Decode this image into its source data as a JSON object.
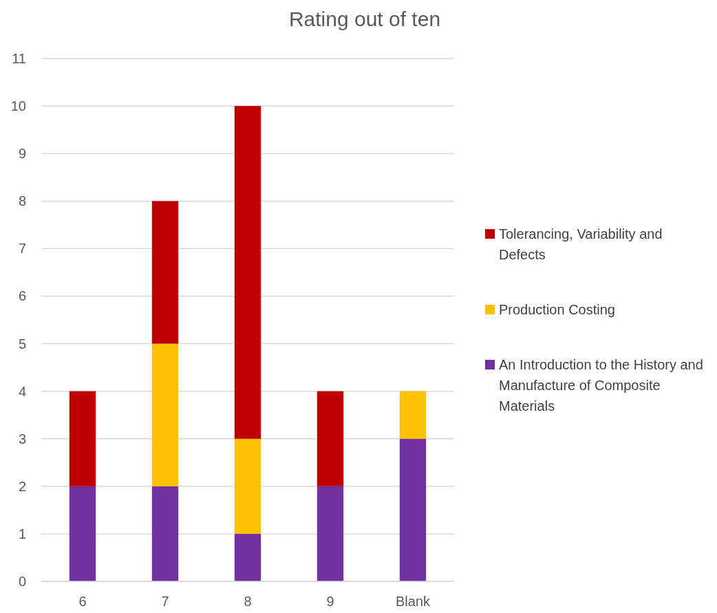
{
  "chart_data": {
    "type": "bar",
    "title": "Rating out of ten",
    "categories": [
      "6",
      "7",
      "8",
      "9",
      "Blank"
    ],
    "stacked": true,
    "series": [
      {
        "name": "An Introduction to the History and Manufacture of Composite Materials",
        "color": "#7030a0",
        "values": [
          2,
          2,
          1,
          2,
          3
        ]
      },
      {
        "name": "Production Costing",
        "color": "#ffc000",
        "values": [
          0,
          3,
          2,
          0,
          1
        ]
      },
      {
        "name": "Tolerancing, Variability and Defects",
        "color": "#c00000",
        "values": [
          2,
          3,
          7,
          2,
          0
        ]
      }
    ],
    "ylim": [
      0,
      11
    ],
    "yticks": [
      0,
      1,
      2,
      3,
      4,
      5,
      6,
      7,
      8,
      9,
      10,
      11
    ],
    "grid": "y",
    "legend": "right"
  }
}
